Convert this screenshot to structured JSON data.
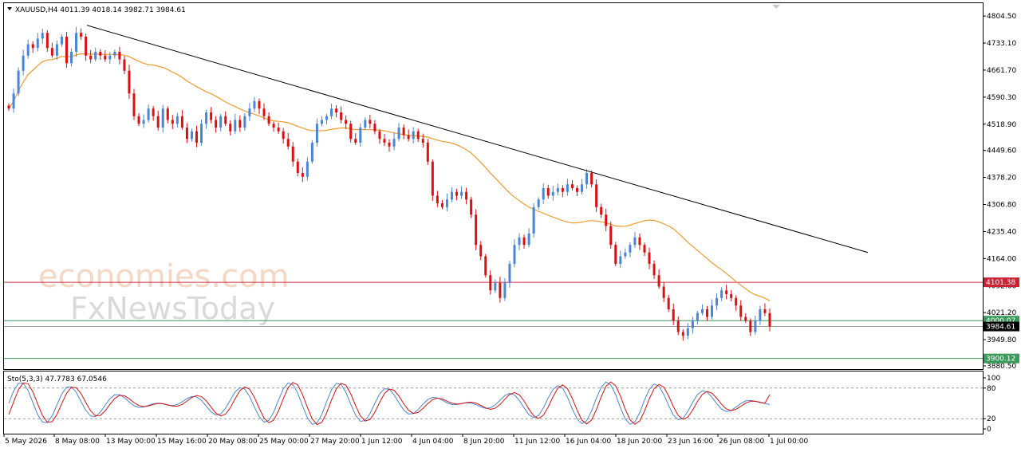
{
  "header": {
    "symbol_line": "XAUUSD,H4  4011.39 4018.14 3982.71 3984.61"
  },
  "indicator_header": "Sto(5,3,3) 47.7783 67.0546",
  "watermark": {
    "line1": "economies.com",
    "line2": "FxNewsToday"
  },
  "colors": {
    "bull": "#4a86d8",
    "bear": "#dd1010",
    "ma": "#f29a2e",
    "trend": "#000000",
    "resistance": "#cc3344",
    "support": "#3a9a5a",
    "stoch_main": "#4a86d8",
    "stoch_signal": "#dd1010"
  },
  "price_axis": {
    "ticks": [
      "4804.50",
      "4733.10",
      "4661.70",
      "4590.30",
      "4518.90",
      "4449.60",
      "4378.20",
      "4306.80",
      "4235.40",
      "4164.00",
      "4092.60",
      "4021.20",
      "3949.80",
      "3880.50"
    ],
    "range": [
      3880.5,
      4830
    ]
  },
  "time_axis": {
    "labels": [
      "5 May 2026",
      "8 May 08:00",
      "13 May 00:00",
      "15 May 16:00",
      "20 May 08:00",
      "25 May 00:00",
      "27 May 20:00",
      "1 Jun 12:00",
      "4 Jun 04:00",
      "8 Jun 20:00",
      "11 Jun 12:00",
      "16 Jun 04:00",
      "18 Jun 20:00",
      "23 Jun 16:00",
      "26 Jun 08:00",
      "1 Jul 00:00"
    ]
  },
  "levels": [
    {
      "name": "resistance",
      "value": 4101.38,
      "label": "4101.38"
    },
    {
      "name": "level-4000",
      "value": 4000.07,
      "label": "4000.07"
    },
    {
      "name": "current-price",
      "value": 3984.61,
      "label": "3984.61"
    },
    {
      "name": "support",
      "value": 3900.12,
      "label": "3900.12"
    }
  ],
  "stoch_axis": {
    "ticks": [
      "100",
      "80",
      "20",
      "0"
    ]
  },
  "chart_data": {
    "type": "candlestick",
    "symbol": "XAUUSD",
    "timeframe": "H4",
    "closes": [
      4560,
      4600,
      4660,
      4700,
      4730,
      4720,
      4745,
      4760,
      4720,
      4700,
      4730,
      4750,
      4680,
      4710,
      4760,
      4750,
      4700,
      4690,
      4710,
      4700,
      4690,
      4700,
      4710,
      4690,
      4660,
      4600,
      4540,
      4520,
      4530,
      4560,
      4540,
      4510,
      4560,
      4530,
      4520,
      4540,
      4510,
      4480,
      4500,
      4470,
      4520,
      4550,
      4530,
      4510,
      4540,
      4520,
      4500,
      4530,
      4510,
      4540,
      4560,
      4580,
      4560,
      4540,
      4520,
      4510,
      4500,
      4480,
      4460,
      4420,
      4390,
      4380,
      4420,
      4470,
      4520,
      4530,
      4540,
      4560,
      4550,
      4530,
      4520,
      4480,
      4470,
      4510,
      4530,
      4520,
      4500,
      4480,
      4470,
      4460,
      4480,
      4510,
      4490,
      4480,
      4500,
      4480,
      4470,
      4420,
      4330,
      4310,
      4300,
      4320,
      4340,
      4330,
      4340,
      4320,
      4280,
      4200,
      4170,
      4120,
      4080,
      4100,
      4060,
      4100,
      4150,
      4200,
      4220,
      4200,
      4230,
      4300,
      4320,
      4350,
      4330,
      4340,
      4350,
      4340,
      4360,
      4350,
      4340,
      4360,
      4390,
      4360,
      4300,
      4280,
      4250,
      4200,
      4150,
      4170,
      4180,
      4200,
      4220,
      4200,
      4180,
      4150,
      4120,
      4090,
      4060,
      4030,
      4000,
      3970,
      3960,
      3980,
      4000,
      4020,
      4030,
      4010,
      4040,
      4060,
      4080,
      4070,
      4060,
      4040,
      4010,
      4000,
      3970,
      4000,
      4030,
      4020,
      3984.61
    ],
    "ma_period_note": "",
    "trendline": {
      "start": [
        0.142,
        4780
      ],
      "end": [
        1.0,
        4180
      ]
    },
    "stochastic": {
      "main_last": 47.7783,
      "signal_last": 67.0546,
      "levels": [
        20,
        80
      ],
      "ylim": [
        0,
        100
      ]
    },
    "ylim": [
      3880.5,
      4830
    ]
  }
}
